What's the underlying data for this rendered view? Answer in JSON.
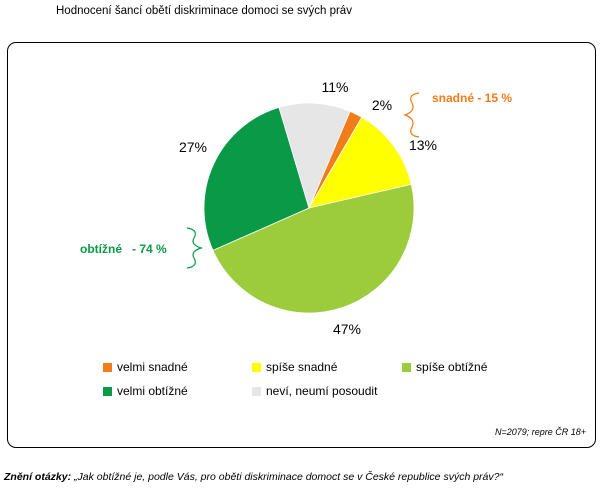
{
  "title": "Hodnocení šancí obětí diskriminace domoci se svých práv",
  "chart_data": {
    "type": "pie",
    "slices": [
      {
        "label": "velmi snadné",
        "value": 2,
        "display": "2%",
        "color": "#f07c1a"
      },
      {
        "label": "spíše snadné",
        "value": 13,
        "display": "13%",
        "color": "#ffff00"
      },
      {
        "label": "spíše obtížné",
        "value": 47,
        "display": "47%",
        "color": "#9ccb3b"
      },
      {
        "label": "velmi obtížné",
        "value": 27,
        "display": "27%",
        "color": "#0a9a47"
      },
      {
        "label": "neví, neumí posoudit",
        "value": 11,
        "display": "11%",
        "color": "#e6e6e6"
      }
    ],
    "annotations": {
      "easy": {
        "text": "snadné  - 15 %",
        "color": "#f07c1a"
      },
      "hard": {
        "text": "obtížné   - 74 %",
        "color": "#0a9a47"
      }
    },
    "legend_position": "bottom"
  },
  "legend": [
    {
      "label": "velmi snadné",
      "color": "#f07c1a"
    },
    {
      "label": "spíše snadné",
      "color": "#ffff00"
    },
    {
      "label": "spíše obtížné",
      "color": "#9ccb3b"
    },
    {
      "label": "velmi obtížné",
      "color": "#0a9a47"
    },
    {
      "label": "neví, neumí posoudit",
      "color": "#e6e6e6"
    }
  ],
  "note": "N=2079; repre ČR 18+",
  "question": {
    "label": "Znění otázky:",
    "text": " „Jak obtížné je, podle Vás, pro oběti diskriminace domoct se v České republice svých práv?“"
  }
}
